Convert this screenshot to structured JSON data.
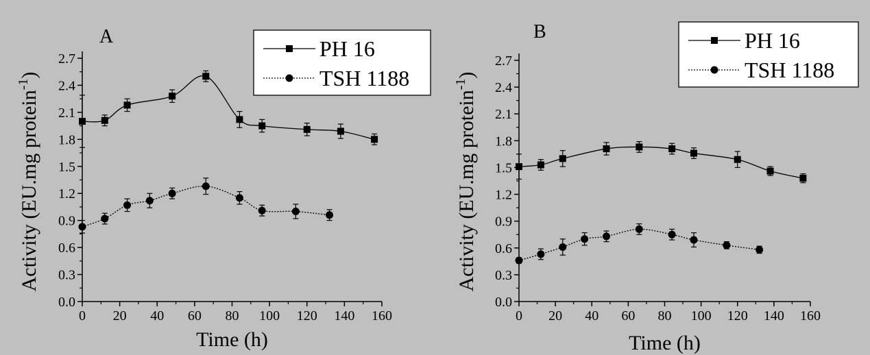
{
  "chart_data": [
    {
      "type": "line",
      "panel_label": "A",
      "xlabel": "Time (h)",
      "ylabel": "Activity (EU.mg protein",
      "ylabel_superscript": "-1",
      "ylabel_close": ")",
      "xlim": [
        0,
        160
      ],
      "ylim": [
        0.0,
        2.7
      ],
      "x_ticks": [
        "0",
        "20",
        "40",
        "60",
        "80",
        "100",
        "120",
        "140",
        "160"
      ],
      "y_ticks": [
        "0.0",
        "0.3",
        "0.6",
        "0.9",
        "1.2",
        "1.5",
        "1.8",
        "2.1",
        "2.4",
        "2.7"
      ],
      "grid": false,
      "legend_position": "top-right",
      "series": [
        {
          "name": "PH 16",
          "marker": "square",
          "line_style": "solid",
          "x": [
            0,
            12,
            24,
            48,
            66,
            84,
            96,
            120,
            138,
            156
          ],
          "y": [
            2.0,
            2.01,
            2.18,
            2.28,
            2.5,
            2.02,
            1.95,
            1.91,
            1.89,
            1.8
          ],
          "error": [
            0.29,
            0.06,
            0.07,
            0.07,
            0.06,
            0.09,
            0.07,
            0.07,
            0.08,
            0.06
          ]
        },
        {
          "name": "TSH 1188",
          "marker": "circle",
          "line_style": "dotted",
          "x": [
            0,
            12,
            24,
            36,
            48,
            66,
            84,
            96,
            114,
            132
          ],
          "y": [
            0.83,
            0.92,
            1.07,
            1.12,
            1.2,
            1.28,
            1.15,
            1.01,
            1.0,
            0.96
          ],
          "error": [
            0.07,
            0.06,
            0.07,
            0.08,
            0.06,
            0.09,
            0.07,
            0.06,
            0.08,
            0.06
          ]
        }
      ]
    },
    {
      "type": "line",
      "panel_label": "B",
      "xlabel": "Time (h)",
      "ylabel": "Activity (EU.mg protein",
      "ylabel_superscript": "-1",
      "ylabel_close": ")",
      "xlim": [
        0,
        160
      ],
      "ylim": [
        0.0,
        2.7
      ],
      "x_ticks": [
        "0",
        "20",
        "40",
        "60",
        "80",
        "100",
        "120",
        "140",
        "160"
      ],
      "y_ticks": [
        "0.0",
        "0.3",
        "0.6",
        "0.9",
        "1.2",
        "1.5",
        "1.8",
        "2.1",
        "2.4",
        "2.7"
      ],
      "grid": false,
      "legend_position": "top-right",
      "series": [
        {
          "name": "PH 16",
          "marker": "square",
          "line_style": "solid",
          "x": [
            0,
            12,
            24,
            48,
            66,
            84,
            96,
            120,
            138,
            156
          ],
          "y": [
            1.51,
            1.53,
            1.6,
            1.71,
            1.73,
            1.71,
            1.66,
            1.59,
            1.46,
            1.38
          ],
          "error": [
            0.14,
            0.06,
            0.09,
            0.07,
            0.06,
            0.06,
            0.06,
            0.09,
            0.05,
            0.05
          ]
        },
        {
          "name": "TSH 1188",
          "marker": "circle",
          "line_style": "dotted",
          "x": [
            0,
            12,
            24,
            36,
            48,
            66,
            84,
            96,
            114,
            132
          ],
          "y": [
            0.46,
            0.53,
            0.61,
            0.7,
            0.73,
            0.81,
            0.75,
            0.69,
            0.63,
            0.58
          ],
          "error": [
            0.03,
            0.06,
            0.09,
            0.07,
            0.06,
            0.06,
            0.06,
            0.08,
            0.04,
            0.04
          ]
        }
      ]
    }
  ]
}
